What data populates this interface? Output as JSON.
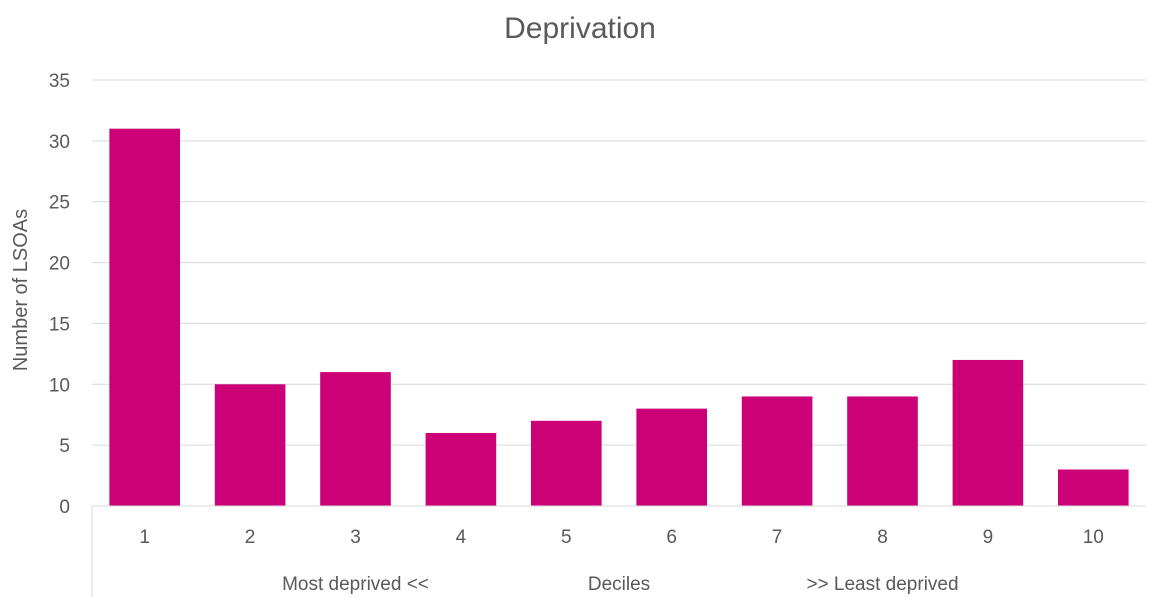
{
  "chart_data": {
    "type": "bar",
    "title": "Deprivation",
    "ylabel": "Number of LSOAs",
    "categories": [
      "1",
      "2",
      "3",
      "4",
      "5",
      "6",
      "7",
      "8",
      "9",
      "10"
    ],
    "values": [
      31,
      10,
      11,
      6,
      7,
      8,
      9,
      9,
      12,
      3
    ],
    "ylim": [
      0,
      35
    ],
    "yticks": [
      0,
      5,
      10,
      15,
      20,
      25,
      30,
      35
    ],
    "x_group_labels": [
      "Most deprived <<",
      "Deciles",
      ">> Least deprived"
    ],
    "grid": true,
    "legend": "none",
    "bar_color": "#CC0077",
    "gridline_color": "#D9D9D9",
    "text_color": "#595959"
  }
}
